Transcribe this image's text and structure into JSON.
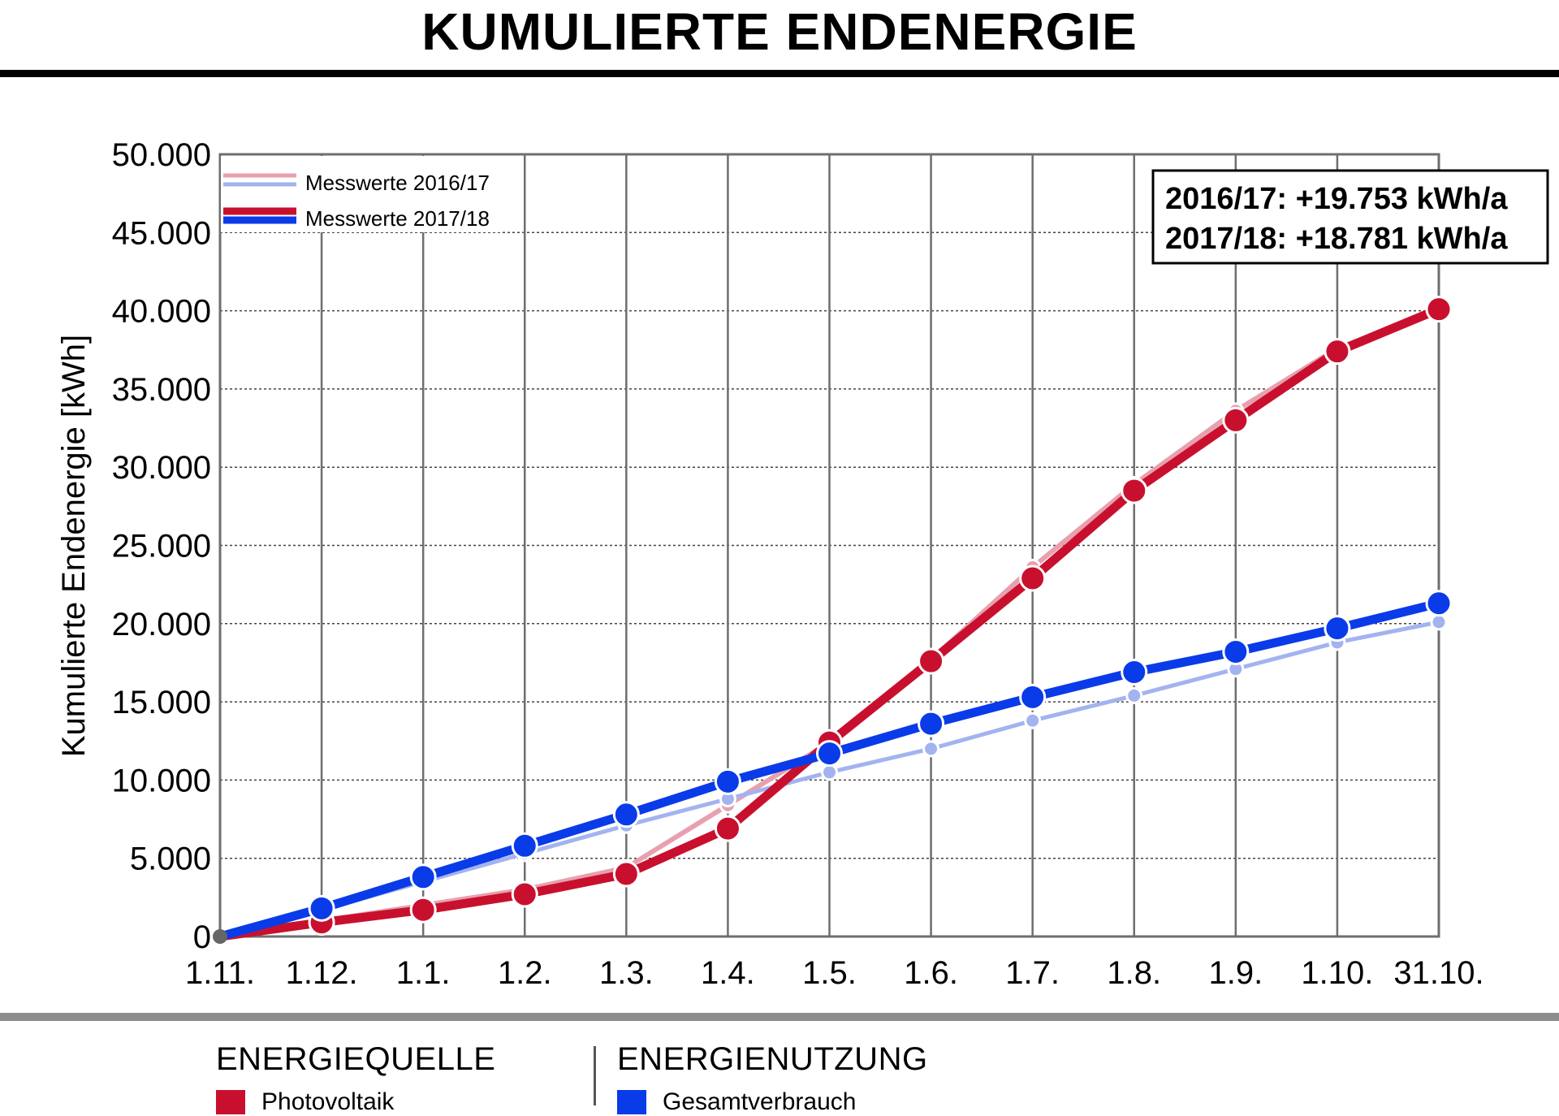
{
  "title": "KUMULIERTE ENDENERGIE",
  "colors": {
    "pv_2017_18": "#c8102e",
    "pv_2016_17": "#e8a0ae",
    "use_2017_18": "#0a3be8",
    "use_2016_17": "#a3b3f0",
    "grid": "#6e6e6e",
    "origin": "#666666"
  },
  "chart_data": {
    "type": "line",
    "ylabel": "Kumulierte Endenergie [kWh]",
    "xlabel": "",
    "ylim": [
      0,
      50000
    ],
    "y_ticks": [
      "0",
      "5.000",
      "10.000",
      "15.000",
      "20.000",
      "25.000",
      "30.000",
      "35.000",
      "40.000",
      "45.000",
      "50.000"
    ],
    "x": [
      "1.11.",
      "1.12.",
      "1.1.",
      "1.2.",
      "1.3.",
      "1.4.",
      "1.5.",
      "1.6.",
      "1.7.",
      "1.8.",
      "1.9.",
      "1.10.",
      "31.10."
    ],
    "grid": "vertical solid, horizontal dotted",
    "series": [
      {
        "name": "Messwerte 2016/17",
        "source": "Photovoltaik",
        "color": "#e8a0ae",
        "values": [
          0,
          1000,
          2000,
          3000,
          4400,
          8400,
          12400,
          17700,
          23600,
          28900,
          33600,
          37600,
          40000
        ]
      },
      {
        "name": "Messwerte 2016/17",
        "source": "Gesamtverbrauch",
        "color": "#a3b3f0",
        "values": [
          0,
          1700,
          3500,
          5300,
          7100,
          8800,
          10500,
          12000,
          13800,
          15400,
          17100,
          18800,
          20100
        ]
      },
      {
        "name": "Messwerte 2017/18",
        "source": "Photovoltaik",
        "color": "#c8102e",
        "values": [
          0,
          900,
          1700,
          2700,
          4000,
          6900,
          12400,
          17600,
          22900,
          28500,
          33000,
          37400,
          40100
        ]
      },
      {
        "name": "Messwerte 2017/18",
        "source": "Gesamtverbrauch",
        "color": "#0a3be8",
        "values": [
          0,
          1800,
          3800,
          5800,
          7800,
          9900,
          11700,
          13600,
          15300,
          16900,
          18200,
          19700,
          21300
        ]
      }
    ],
    "legend": [
      {
        "label": "Messwerte 2016/17"
      },
      {
        "label": "Messwerte 2017/18"
      }
    ],
    "legend_position": "top-left",
    "annotation": [
      "2016/17: +19.753 kWh/a",
      "2017/18: +18.781 kWh/a"
    ]
  },
  "legend_sections": {
    "source_heading": "ENERGIEQUELLE",
    "source_item": "Photovoltaik",
    "use_heading": "ENERGIENUTZUNG",
    "use_item": "Gesamtverbrauch"
  }
}
